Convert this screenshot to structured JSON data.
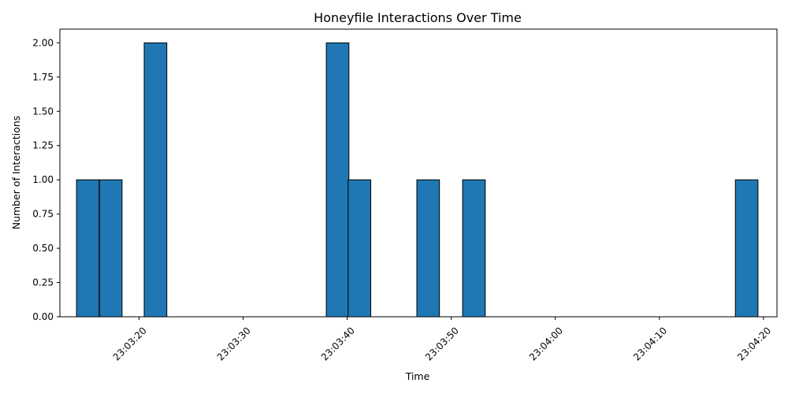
{
  "chart_data": {
    "type": "bar",
    "title": "Honeyfile Interactions Over Time",
    "xlabel": "Time",
    "ylabel": "Number of Interactions",
    "x_axis_type": "time",
    "xlim": [
      "23:03:12.4",
      "23:04:21.3"
    ],
    "ylim": [
      0,
      2.1
    ],
    "x_ticks": [
      "23:03:20",
      "23:03:30",
      "23:03:40",
      "23:03:50",
      "23:04:00",
      "23:04:10",
      "23:04:20"
    ],
    "y_ticks": [
      "0.00",
      "0.25",
      "0.50",
      "0.75",
      "1.00",
      "1.25",
      "1.50",
      "1.75",
      "2.00"
    ],
    "bin_width_seconds": 2.17,
    "bars": [
      {
        "start": "23:03:14.0",
        "value": 1
      },
      {
        "start": "23:03:16.2",
        "value": 1
      },
      {
        "start": "23:03:20.5",
        "value": 2
      },
      {
        "start": "23:03:38.0",
        "value": 2
      },
      {
        "start": "23:03:40.1",
        "value": 1
      },
      {
        "start": "23:03:46.7",
        "value": 1
      },
      {
        "start": "23:03:51.1",
        "value": 1
      },
      {
        "start": "23:04:17.3",
        "value": 1
      }
    ],
    "bar_color": "#1f77b4",
    "bar_edge_color": "#000000",
    "grid": false,
    "legend": "none"
  }
}
